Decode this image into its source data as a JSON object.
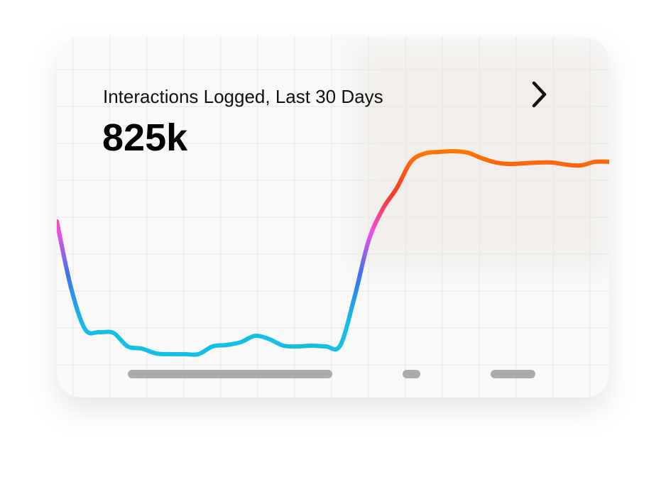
{
  "chart_data": {
    "type": "line",
    "title": "Interactions Logged, Last 30 Days",
    "headline": "825k",
    "values": [
      61.2,
      33.8,
      16.5,
      15.3,
      15,
      9.4,
      8.5,
      6.5,
      6.2,
      6.2,
      6.2,
      9.4,
      10,
      11.2,
      13.8,
      12.4,
      9.7,
      9.4,
      9.7,
      9.4,
      9.7,
      29.4,
      52.9,
      66.2,
      75,
      85.9,
      89.4,
      90,
      90.3,
      89.7,
      87.4,
      85.6,
      85,
      85.3,
      85.6,
      85.6,
      84.7,
      84.4,
      85.9,
      85.9
    ],
    "ylim": [
      0,
      100
    ]
  }
}
